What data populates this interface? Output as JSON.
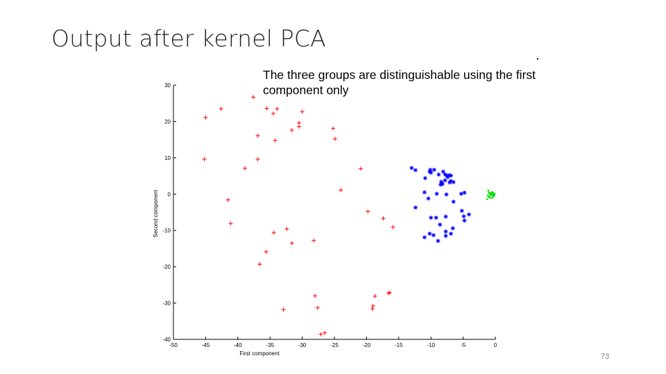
{
  "slide": {
    "title": "Output after kernel PCA",
    "callout": "The three groups are distinguishable using the first component only",
    "page_number": "73"
  },
  "chart_data": {
    "type": "scatter",
    "title": "",
    "xlabel": "First component",
    "ylabel": "Second component",
    "xlim": [
      -50,
      0
    ],
    "ylim": [
      -40,
      30
    ],
    "xticks": [
      -50,
      -45,
      -40,
      -35,
      -30,
      -25,
      -20,
      -15,
      -10,
      -5,
      0
    ],
    "yticks": [
      -40,
      -30,
      -20,
      -10,
      0,
      10,
      20,
      30
    ],
    "grid": false,
    "legend": "none",
    "series": [
      {
        "marker": "plus",
        "color": "#ff0000",
        "points": [
          [
            -37.6,
            26.7
          ],
          [
            -42.6,
            23.5
          ],
          [
            -35.5,
            23.6
          ],
          [
            -33.9,
            23.5
          ],
          [
            -34.5,
            22.2
          ],
          [
            -30.0,
            22.7
          ],
          [
            -45.0,
            21.1
          ],
          [
            -30.5,
            19.6
          ],
          [
            -30.5,
            18.6
          ],
          [
            -31.6,
            17.6
          ],
          [
            -25.2,
            18.1
          ],
          [
            -36.9,
            16.1
          ],
          [
            -24.9,
            15.2
          ],
          [
            -34.2,
            14.8
          ],
          [
            -45.2,
            9.6
          ],
          [
            -36.9,
            9.6
          ],
          [
            -38.9,
            7.1
          ],
          [
            -20.9,
            7.0
          ],
          [
            -24.0,
            1.1
          ],
          [
            -41.5,
            -1.6
          ],
          [
            -19.8,
            -4.8
          ],
          [
            -17.4,
            -6.7
          ],
          [
            -41.1,
            -8.1
          ],
          [
            -15.9,
            -9.1
          ],
          [
            -32.4,
            -9.6
          ],
          [
            -34.4,
            -10.6
          ],
          [
            -31.6,
            -13.5
          ],
          [
            -28.2,
            -12.8
          ],
          [
            -35.6,
            -15.9
          ],
          [
            -36.6,
            -19.3
          ],
          [
            -28.0,
            -28.0
          ],
          [
            -18.7,
            -28.1
          ],
          [
            -16.6,
            -27.3
          ],
          [
            -16.4,
            -27.1
          ],
          [
            -19.0,
            -30.8
          ],
          [
            -27.6,
            -31.3
          ],
          [
            -19.1,
            -31.6
          ],
          [
            -32.9,
            -31.8
          ],
          [
            -27.1,
            -38.6
          ],
          [
            -26.5,
            -38.2
          ]
        ]
      },
      {
        "marker": "star",
        "color": "#0000ff",
        "points": [
          [
            -13.0,
            7.2
          ],
          [
            -12.4,
            6.6
          ],
          [
            -10.1,
            6.7
          ],
          [
            -10.2,
            6.2
          ],
          [
            -9.5,
            6.7
          ],
          [
            -10.0,
            5.9
          ],
          [
            -8.8,
            5.4
          ],
          [
            -8.1,
            6.2
          ],
          [
            -7.8,
            5.4
          ],
          [
            -7.6,
            5.2
          ],
          [
            -7.2,
            5.2
          ],
          [
            -6.9,
            5.1
          ],
          [
            -7.4,
            4.7
          ],
          [
            -10.9,
            4.4
          ],
          [
            -7.8,
            3.8
          ],
          [
            -7.1,
            3.2
          ],
          [
            -6.9,
            3.6
          ],
          [
            -8.4,
            3.4
          ],
          [
            -8.2,
            2.8
          ],
          [
            -6.5,
            3.3
          ],
          [
            -8.5,
            2.6
          ],
          [
            -11.0,
            0.5
          ],
          [
            -9.1,
            0.1
          ],
          [
            -4.8,
            0.4
          ],
          [
            -5.3,
            0.1
          ],
          [
            -7.6,
            -0.1
          ],
          [
            -10.4,
            -1.2
          ],
          [
            -6.5,
            -2.1
          ],
          [
            -12.4,
            -3.7
          ],
          [
            -5.2,
            -4.6
          ],
          [
            -4.1,
            -5.6
          ],
          [
            -4.9,
            -6.1
          ],
          [
            -10.0,
            -6.5
          ],
          [
            -9.2,
            -6.5
          ],
          [
            -7.7,
            -6.2
          ],
          [
            -4.8,
            -7.3
          ],
          [
            -8.6,
            -8.4
          ],
          [
            -6.6,
            -9.4
          ],
          [
            -7.7,
            -10.3
          ],
          [
            -10.2,
            -10.9
          ],
          [
            -6.9,
            -10.9
          ],
          [
            -7.7,
            -11.5
          ],
          [
            -9.6,
            -11.3
          ],
          [
            -11.0,
            -11.9
          ],
          [
            -8.9,
            -12.9
          ]
        ]
      },
      {
        "marker": "dot",
        "color": "#00dd00",
        "points": [
          [
            -1.1,
            1.0
          ],
          [
            -1.0,
            0.5
          ],
          [
            -0.7,
            0.3
          ],
          [
            -0.4,
            0.4
          ],
          [
            -0.2,
            0.2
          ],
          [
            -0.1,
            0.0
          ],
          [
            -0.3,
            -0.2
          ],
          [
            -0.5,
            -0.4
          ],
          [
            -0.9,
            -0.6
          ],
          [
            -1.2,
            -0.4
          ],
          [
            -0.6,
            0.0
          ],
          [
            -0.8,
            -0.2
          ],
          [
            -0.2,
            -0.5
          ],
          [
            -0.4,
            -0.9
          ],
          [
            -1.3,
            -1.4
          ],
          [
            -0.7,
            -1.1
          ],
          [
            -0.5,
            0.6
          ],
          [
            -0.9,
            0.2
          ],
          [
            -0.3,
            0.1
          ],
          [
            -1.0,
            -0.9
          ]
        ]
      }
    ]
  }
}
